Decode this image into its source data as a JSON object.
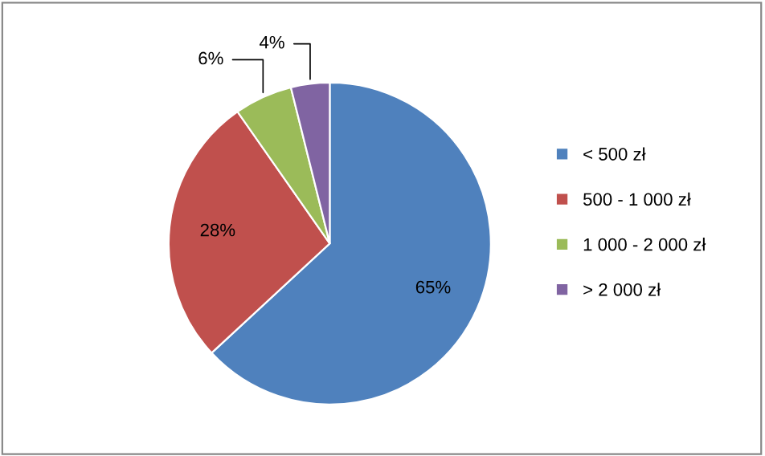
{
  "chart_data": {
    "type": "pie",
    "categories": [
      "< 500 zł",
      "500 - 1 000 zł",
      "1 000 - 2 000 zł",
      "> 2 000 zł"
    ],
    "values": [
      65,
      28,
      6,
      4
    ],
    "colors": [
      "#4f81bd",
      "#c0504d",
      "#9bbb59",
      "#8064a2"
    ],
    "value_labels": [
      "65%",
      "28%",
      "6%",
      "4%"
    ],
    "legend": "right"
  }
}
